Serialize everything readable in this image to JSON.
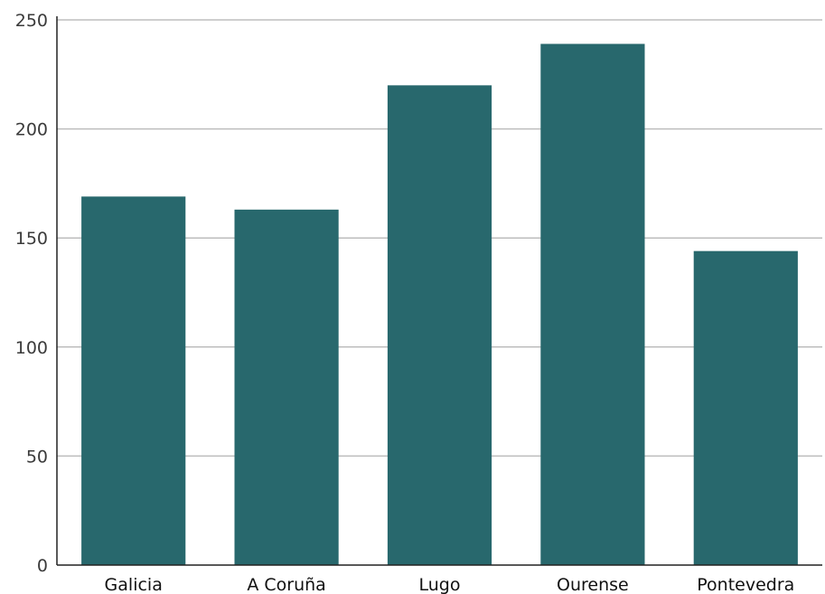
{
  "chart_data": {
    "type": "bar",
    "title": "",
    "xlabel": "",
    "ylabel": "",
    "categories": [
      "Galicia",
      "A Coruña",
      "Lugo",
      "Ourense",
      "Pontevedra"
    ],
    "values": [
      169,
      163,
      220,
      239,
      144
    ],
    "ylim": [
      0,
      250
    ],
    "yticks": [
      0,
      50,
      100,
      150,
      200,
      250
    ],
    "grid": true,
    "bar_color": "#28686d"
  }
}
